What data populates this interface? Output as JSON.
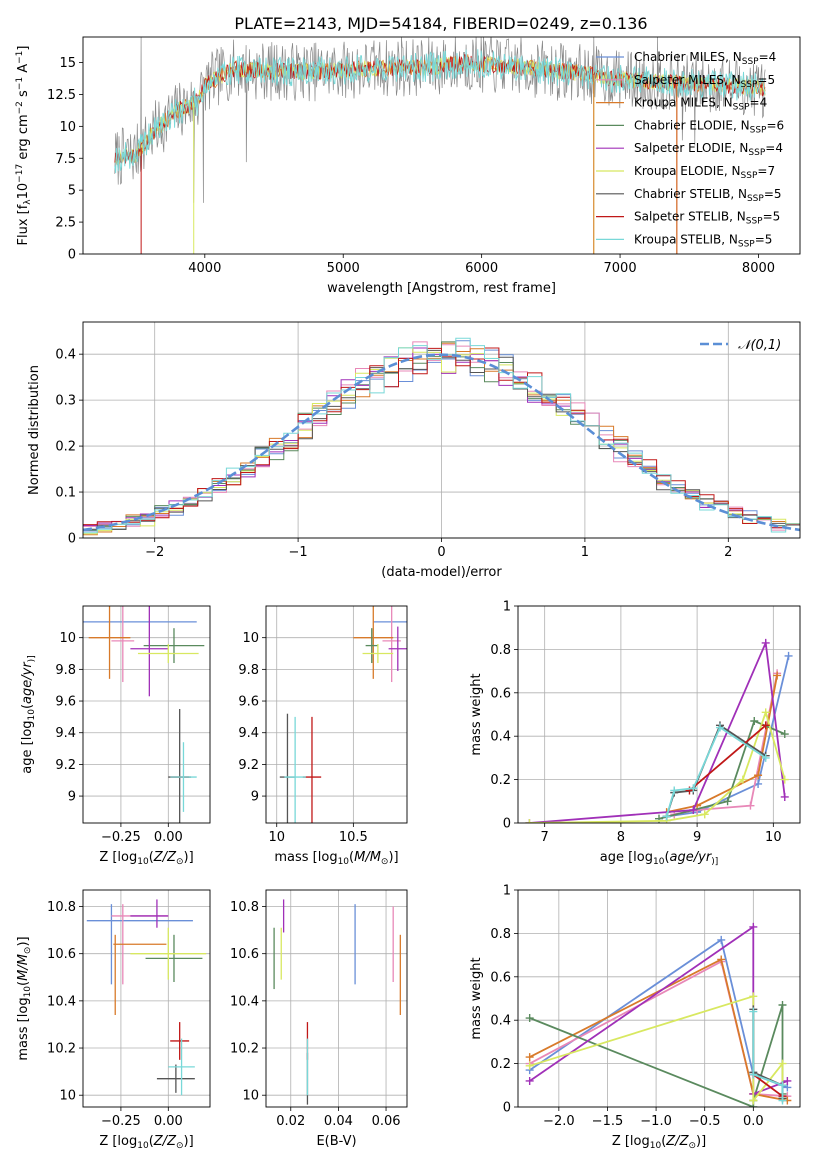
{
  "figure_title": "PLATE=2143, MJD=54184, FIBERID=0249, z=0.136",
  "colors": {
    "Chabrier MILES": "#6a8fd8",
    "Salpeter MILES": "#e888b8",
    "Kroupa MILES": "#d87a2a",
    "Chabrier ELODIE": "#5a8a5e",
    "Salpeter ELODIE": "#a030b8",
    "Kroupa ELODIE": "#d8e860",
    "Chabrier STELIB": "#555555",
    "Salpeter STELIB": "#c01818",
    "Kroupa STELIB": "#78d8d8",
    "normal": "#5b8fd6",
    "spectrum_gray": "#888888"
  },
  "chart_data": [
    {
      "type": "line",
      "panel": "spectrum",
      "xlabel": "wavelength [Angstrom, rest frame]",
      "ylabel": "Flux [f",
      "ylabel_parts": [
        "Flux [f",
        "λ",
        "10",
        "−17",
        " erg cm",
        "−2",
        " s",
        "−1",
        " A",
        "−1",
        "]"
      ],
      "xlim": [
        3120,
        8300
      ],
      "ylim": [
        0,
        17
      ],
      "xticks": [
        4000,
        5000,
        6000,
        7000,
        8000
      ],
      "yticks": [
        0.0,
        2.5,
        5.0,
        7.5,
        10.0,
        12.5,
        15.0
      ],
      "legend_position": "right, inside",
      "legend": [
        {
          "label": "Chabrier MILES, N",
          "sub": "SSP",
          "value": "=4",
          "key": "Chabrier MILES"
        },
        {
          "label": "Salpeter MILES, N",
          "sub": "SSP",
          "value": "=5",
          "key": "Salpeter MILES"
        },
        {
          "label": "Kroupa MILES, N",
          "sub": "SSP",
          "value": "=4",
          "key": "Kroupa MILES"
        },
        {
          "label": "Chabrier ELODIE, N",
          "sub": "SSP",
          "value": "=6",
          "key": "Chabrier ELODIE"
        },
        {
          "label": "Salpeter ELODIE, N",
          "sub": "SSP",
          "value": "=4",
          "key": "Salpeter ELODIE"
        },
        {
          "label": "Kroupa ELODIE, N",
          "sub": "SSP",
          "value": "=7",
          "key": "Kroupa ELODIE"
        },
        {
          "label": "Chabrier STELIB, N",
          "sub": "SSP",
          "value": "=5",
          "key": "Chabrier STELIB"
        },
        {
          "label": "Salpeter STELIB, N",
          "sub": "SSP",
          "value": "=5",
          "key": "Salpeter STELIB"
        },
        {
          "label": "Kroupa STELIB, N",
          "sub": "SSP",
          "value": "=5",
          "key": "Kroupa STELIB"
        }
      ],
      "continuum": [
        [
          3350,
          7.5
        ],
        [
          3500,
          7.8
        ],
        [
          3650,
          9.8
        ],
        [
          3800,
          11.2
        ],
        [
          3950,
          12.0
        ],
        [
          4000,
          13.2
        ],
        [
          4200,
          14.5
        ],
        [
          4500,
          14.3
        ],
        [
          4800,
          14.3
        ],
        [
          5000,
          14.4
        ],
        [
          5300,
          14.6
        ],
        [
          5600,
          14.6
        ],
        [
          5900,
          15.0
        ],
        [
          6300,
          14.6
        ],
        [
          6700,
          14.2
        ],
        [
          7000,
          13.7
        ],
        [
          7400,
          13.4
        ],
        [
          7800,
          13.2
        ],
        [
          8050,
          13.0
        ]
      ],
      "noise_amplitude": 1.3,
      "spikes": [
        [
          3540,
          17
        ],
        [
          3920,
          4.0
        ],
        [
          3990,
          4.0
        ],
        [
          4300,
          7.2
        ],
        [
          5420,
          17
        ],
        [
          6810,
          17
        ],
        [
          7270,
          17
        ],
        [
          7540,
          8.5
        ],
        [
          7450,
          8.9
        ]
      ],
      "edge_drops": [
        {
          "key": "Salpeter STELIB",
          "x": 3540
        },
        {
          "key": "Kroupa ELODIE",
          "x": 3920
        },
        {
          "key": "Kroupa ELODIE",
          "x": 6810
        },
        {
          "key": "Kroupa MILES",
          "x": 6810
        },
        {
          "key": "Salpeter STELIB",
          "x": 7410
        },
        {
          "key": "Kroupa MILES",
          "x": 7410
        }
      ]
    },
    {
      "type": "histogram",
      "panel": "residual_distribution",
      "xlabel": "(data-model)/error",
      "ylabel": "Normed distribution",
      "xlim": [
        -2.5,
        2.5
      ],
      "ylim": [
        0,
        0.47
      ],
      "xticks": [
        -2,
        -1,
        0,
        1,
        2
      ],
      "yticks": [
        0.0,
        0.1,
        0.2,
        0.3,
        0.4
      ],
      "bin_width": 0.1,
      "legend": [
        {
          "label": "𝒩(0,1)",
          "key": "normal",
          "style": "dashed"
        }
      ],
      "legend_position": "top-right",
      "series_order": [
        "Chabrier MILES",
        "Salpeter MILES",
        "Kroupa MILES",
        "Chabrier ELODIE",
        "Salpeter ELODIE",
        "Kroupa ELODIE",
        "Chabrier STELIB",
        "Salpeter STELIB",
        "Kroupa STELIB"
      ],
      "noise_amplitude": 0.028
    },
    {
      "type": "errorbar",
      "panel": "age_vs_Z",
      "xlabel": "Z [log",
      "xlabel_parts": [
        "Z [log",
        "10",
        "(",
        "Z/Z",
        "⊙",
        ")]"
      ],
      "ylabel_parts": [
        "age  [log",
        "10",
        "(",
        "age/yr",
        ")]"
      ],
      "xlim": [
        -0.45,
        0.22
      ],
      "ylim": [
        8.83,
        10.2
      ],
      "xticks": [
        -0.25,
        0.0
      ],
      "xtick_labels": [
        "−0.25",
        "0.00"
      ],
      "yticks": [
        9.0,
        9.2,
        9.4,
        9.6,
        9.8,
        10.0
      ],
      "points": [
        {
          "key": "Chabrier MILES",
          "x": -0.15,
          "y": 10.1,
          "xerr": 0.3,
          "yerr": 0.0
        },
        {
          "key": "Salpeter MILES",
          "x": -0.24,
          "y": 9.98,
          "xerr": 0.06,
          "yerr": 0.26
        },
        {
          "key": "Kroupa MILES",
          "x": -0.31,
          "y": 10.0,
          "xerr": 0.11,
          "yerr": 0.26
        },
        {
          "key": "Chabrier ELODIE",
          "x": 0.03,
          "y": 9.95,
          "xerr": 0.16,
          "yerr": 0.11
        },
        {
          "key": "Salpeter ELODIE",
          "x": -0.1,
          "y": 9.93,
          "xerr": 0.1,
          "yerr": 0.3
        },
        {
          "key": "Kroupa ELODIE",
          "x": 0.0,
          "y": 9.9,
          "xerr": 0.16,
          "yerr": 0.06
        },
        {
          "key": "Chabrier STELIB",
          "x": 0.06,
          "y": 9.12,
          "xerr": 0.06,
          "yerr": 0.43
        },
        {
          "key": "Salpeter STELIB",
          "x": 0.06,
          "y": 9.12,
          "xerr": 0.05,
          "yerr": 0.0
        },
        {
          "key": "Kroupa STELIB",
          "x": 0.08,
          "y": 9.12,
          "xerr": 0.07,
          "yerr": 0.22
        }
      ]
    },
    {
      "type": "errorbar",
      "panel": "age_vs_mass",
      "xlabel_parts": [
        "mass [log",
        "10",
        "(",
        "M/M",
        "⊙",
        ")]"
      ],
      "xlim": [
        9.93,
        10.85
      ],
      "ylim": [
        8.83,
        10.2
      ],
      "xticks": [
        10.0,
        10.5
      ],
      "yticks": [
        9.0,
        9.2,
        9.4,
        9.6,
        9.8,
        10.0
      ],
      "points": [
        {
          "key": "Chabrier MILES",
          "x": 10.78,
          "y": 10.1,
          "xerr": 0.15,
          "yerr": 0.0
        },
        {
          "key": "Salpeter MILES",
          "x": 10.75,
          "y": 9.98,
          "xerr": 0.06,
          "yerr": 0.26
        },
        {
          "key": "Kroupa MILES",
          "x": 10.63,
          "y": 10.0,
          "xerr": 0.13,
          "yerr": 0.26
        },
        {
          "key": "Chabrier ELODIE",
          "x": 10.62,
          "y": 9.95,
          "xerr": 0.04,
          "yerr": 0.11
        },
        {
          "key": "Salpeter ELODIE",
          "x": 10.79,
          "y": 9.93,
          "xerr": 0.06,
          "yerr": 0.14
        },
        {
          "key": "Kroupa ELODIE",
          "x": 10.66,
          "y": 9.9,
          "xerr": 0.1,
          "yerr": 0.06
        },
        {
          "key": "Chabrier STELIB",
          "x": 10.07,
          "y": 9.12,
          "xerr": 0.05,
          "yerr": 0.4
        },
        {
          "key": "Salpeter STELIB",
          "x": 10.23,
          "y": 9.12,
          "xerr": 0.06,
          "yerr": 0.38
        },
        {
          "key": "Kroupa STELIB",
          "x": 10.12,
          "y": 9.12,
          "xerr": 0.07,
          "yerr": 0.38
        }
      ]
    },
    {
      "type": "line",
      "panel": "weight_vs_age",
      "xlabel_parts": [
        "age  [log",
        "10",
        "(",
        "age/yr",
        ")]"
      ],
      "ylabel": "mass weight",
      "xlim": [
        6.65,
        10.35
      ],
      "ylim": [
        0,
        1.0
      ],
      "xticks": [
        7,
        8,
        9,
        10
      ],
      "yticks": [
        0.0,
        0.2,
        0.4,
        0.6,
        0.8,
        1.0
      ],
      "series": [
        {
          "key": "Chabrier MILES",
          "x": [
            8.6,
            9.0,
            9.8,
            10.2
          ],
          "y": [
            0.03,
            0.05,
            0.18,
            0.77
          ]
        },
        {
          "key": "Salpeter MILES",
          "x": [
            8.7,
            9.0,
            9.7,
            10.05
          ],
          "y": [
            0.04,
            0.06,
            0.08,
            0.69
          ]
        },
        {
          "key": "Kroupa MILES",
          "x": [
            8.6,
            9.0,
            9.8,
            10.05
          ],
          "y": [
            0.05,
            0.08,
            0.22,
            0.68
          ]
        },
        {
          "key": "Chabrier ELODIE",
          "x": [
            8.5,
            9.4,
            9.75,
            10.15
          ],
          "y": [
            0.02,
            0.1,
            0.47,
            0.41
          ]
        },
        {
          "key": "Salpeter ELODIE",
          "x": [
            6.8,
            8.95,
            9.9,
            10.15
          ],
          "y": [
            0.0,
            0.06,
            0.83,
            0.12
          ]
        },
        {
          "key": "Kroupa ELODIE",
          "x": [
            6.8,
            8.6,
            9.1,
            9.6,
            9.9,
            10.15
          ],
          "y": [
            0.0,
            0.01,
            0.04,
            0.2,
            0.51,
            0.2
          ]
        },
        {
          "key": "Chabrier STELIB",
          "x": [
            8.6,
            8.7,
            8.95,
            9.3,
            9.9
          ],
          "y": [
            0.03,
            0.14,
            0.15,
            0.45,
            0.31
          ]
        },
        {
          "key": "Salpeter STELIB",
          "x": [
            8.9,
            9.9
          ],
          "y": [
            0.15,
            0.45
          ]
        },
        {
          "key": "Kroupa STELIB",
          "x": [
            8.6,
            8.7,
            8.95,
            9.3,
            9.9
          ],
          "y": [
            0.03,
            0.15,
            0.16,
            0.44,
            0.3
          ]
        }
      ]
    },
    {
      "type": "errorbar",
      "panel": "mass_vs_Z",
      "xlabel_parts": [
        "Z [log",
        "10",
        "(",
        "Z/Z",
        "⊙",
        ")]"
      ],
      "ylabel_parts": [
        "mass [log",
        "10",
        "(",
        "M/M",
        "⊙",
        ")]"
      ],
      "xlim": [
        -0.45,
        0.22
      ],
      "ylim": [
        9.95,
        10.87
      ],
      "xticks": [
        -0.25,
        0.0
      ],
      "xtick_labels": [
        "−0.25",
        "0.00"
      ],
      "yticks": [
        10.0,
        10.2,
        10.4,
        10.6,
        10.8
      ],
      "points": [
        {
          "key": "Chabrier MILES",
          "x": -0.15,
          "y": 10.74,
          "xerr": 0.28,
          "yerr": 0.0
        },
        {
          "key": "Chabrier MILES",
          "x": -0.3,
          "y": 10.64,
          "xerr": 0.0,
          "yerr": 0.17
        },
        {
          "key": "Salpeter MILES",
          "x": -0.15,
          "y": 10.76,
          "xerr": 0.15,
          "yerr": 0.0
        },
        {
          "key": "Salpeter MILES",
          "x": -0.24,
          "y": 10.64,
          "xerr": 0.0,
          "yerr": 0.17
        },
        {
          "key": "Kroupa MILES",
          "x": -0.15,
          "y": 10.64,
          "xerr": 0.14,
          "yerr": 0.0
        },
        {
          "key": "Kroupa MILES",
          "x": -0.28,
          "y": 10.51,
          "xerr": 0.0,
          "yerr": 0.17
        },
        {
          "key": "Chabrier ELODIE",
          "x": 0.03,
          "y": 10.58,
          "xerr": 0.15,
          "yerr": 0.1
        },
        {
          "key": "Salpeter ELODIE",
          "x": -0.06,
          "y": 10.77,
          "xerr": 0.0,
          "yerr": 0.06
        },
        {
          "key": "Salpeter ELODIE",
          "x": -0.1,
          "y": 10.76,
          "xerr": 0.1,
          "yerr": 0.0
        },
        {
          "key": "Kroupa ELODIE",
          "x": 0.0,
          "y": 10.6,
          "xerr": 0.2,
          "yerr": 0.11
        },
        {
          "key": "Chabrier STELIB",
          "x": 0.04,
          "y": 10.07,
          "xerr": 0.1,
          "yerr": 0.06
        },
        {
          "key": "Salpeter STELIB",
          "x": 0.06,
          "y": 10.23,
          "xerr": 0.05,
          "yerr": 0.08
        },
        {
          "key": "Kroupa STELIB",
          "x": 0.07,
          "y": 10.12,
          "xerr": 0.07,
          "yerr": 0.12
        }
      ]
    },
    {
      "type": "errorbar",
      "panel": "mass_vs_EBV",
      "xlabel": "E(B-V)",
      "xlim": [
        0.0096,
        0.0688
      ],
      "ylim": [
        9.95,
        10.87
      ],
      "xticks": [
        0.02,
        0.04,
        0.06
      ],
      "yticks": [
        10.0,
        10.2,
        10.4,
        10.6,
        10.8
      ],
      "points": [
        {
          "key": "Chabrier MILES",
          "x": 0.047,
          "y": 10.64,
          "xerr": 0.0,
          "yerr": 0.17
        },
        {
          "key": "Salpeter MILES",
          "x": 0.063,
          "y": 10.64,
          "xerr": 0.0,
          "yerr": 0.16
        },
        {
          "key": "Kroupa MILES",
          "x": 0.066,
          "y": 10.51,
          "xerr": 0.0,
          "yerr": 0.17
        },
        {
          "key": "Chabrier ELODIE",
          "x": 0.013,
          "y": 10.58,
          "xerr": 0.0,
          "yerr": 0.13
        },
        {
          "key": "Salpeter ELODIE",
          "x": 0.017,
          "y": 10.76,
          "xerr": 0.0,
          "yerr": 0.07
        },
        {
          "key": "Kroupa ELODIE",
          "x": 0.016,
          "y": 10.6,
          "xerr": 0.0,
          "yerr": 0.11
        },
        {
          "key": "Chabrier STELIB",
          "x": 0.027,
          "y": 10.07,
          "xerr": 0.0,
          "yerr": 0.11
        },
        {
          "key": "Salpeter STELIB",
          "x": 0.027,
          "y": 10.23,
          "xerr": 0.0,
          "yerr": 0.08
        },
        {
          "key": "Kroupa STELIB",
          "x": 0.027,
          "y": 10.12,
          "xerr": 0.0,
          "yerr": 0.12
        }
      ]
    },
    {
      "type": "line",
      "panel": "weight_vs_Z",
      "xlabel_parts": [
        "Z [log",
        "10",
        "(",
        "Z/Z",
        "⊙",
        ")]"
      ],
      "ylabel": "mass weight",
      "xlim": [
        -2.42,
        0.48
      ],
      "ylim": [
        0,
        1.0
      ],
      "xticks": [
        -2.0,
        -1.5,
        -1.0,
        -0.5,
        0.0
      ],
      "xtick_labels": [
        "−2.0",
        "−1.5",
        "−1.0",
        "−0.5",
        "0.0"
      ],
      "yticks": [
        0.0,
        0.2,
        0.4,
        0.6,
        0.8,
        1.0
      ],
      "series": [
        {
          "key": "Chabrier MILES",
          "x": [
            -2.3,
            -0.33,
            0.0,
            0.0,
            0.35
          ],
          "y": [
            0.17,
            0.77,
            0.15,
            0.15,
            0.09
          ]
        },
        {
          "key": "Salpeter MILES",
          "x": [
            -2.3,
            -0.33,
            0.0,
            0.35
          ],
          "y": [
            0.2,
            0.67,
            0.06,
            0.05
          ]
        },
        {
          "key": "Kroupa MILES",
          "x": [
            -2.3,
            -0.33,
            0.0,
            0.35
          ],
          "y": [
            0.23,
            0.68,
            0.06,
            0.03
          ]
        },
        {
          "key": "Chabrier ELODIE",
          "x": [
            -2.3,
            0.0,
            0.0,
            0.3,
            0.3
          ],
          "y": [
            0.41,
            0.0,
            0.03,
            0.47,
            0.06
          ]
        },
        {
          "key": "Salpeter ELODIE",
          "x": [
            -2.3,
            0.0,
            0.0,
            0.35
          ],
          "y": [
            0.12,
            0.83,
            0.06,
            0.12
          ]
        },
        {
          "key": "Kroupa ELODIE",
          "x": [
            -2.3,
            0.0,
            0.0,
            0.3,
            0.3
          ],
          "y": [
            0.19,
            0.51,
            0.03,
            0.2,
            0.04
          ]
        },
        {
          "key": "Chabrier STELIB",
          "x": [
            0.0,
            0.0,
            0.3,
            0.3
          ],
          "y": [
            0.45,
            0.16,
            0.1,
            0.04
          ]
        },
        {
          "key": "Salpeter STELIB",
          "x": [
            0.0,
            0.3
          ],
          "y": [
            0.15,
            0.05
          ]
        },
        {
          "key": "Kroupa STELIB",
          "x": [
            0.0,
            0.0,
            0.3,
            0.3
          ],
          "y": [
            0.44,
            0.15,
            0.1,
            0.03
          ]
        }
      ]
    }
  ]
}
